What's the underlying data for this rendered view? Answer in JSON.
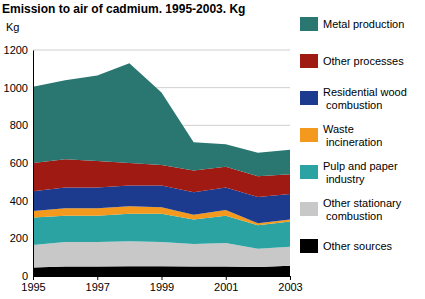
{
  "chart_data": {
    "type": "area",
    "stacked": true,
    "title": "Emission to air of cadmium. 1995-2003. Kg",
    "y_label": "Kg",
    "x": [
      1995,
      1996,
      1997,
      1998,
      1999,
      2000,
      2001,
      2002,
      2003
    ],
    "xlim": [
      1995,
      2003
    ],
    "xticks": [
      1995,
      1997,
      1999,
      2001,
      2003
    ],
    "ylim": [
      0,
      1200
    ],
    "yticks": [
      0,
      200,
      400,
      600,
      800,
      1000,
      1200
    ],
    "grid": true,
    "legend": "right",
    "series": [
      {
        "name": "Other sources",
        "color": "#000000",
        "values": [
          45,
          50,
          50,
          52,
          52,
          50,
          50,
          48,
          55
        ]
      },
      {
        "name": "Other stationary combustion",
        "color": "#c8c8c8",
        "values": [
          120,
          130,
          130,
          133,
          128,
          120,
          125,
          97,
          100
        ]
      },
      {
        "name": "Pulp and paper industry",
        "color": "#2ba3a3",
        "values": [
          145,
          140,
          140,
          145,
          150,
          130,
          145,
          125,
          135
        ]
      },
      {
        "name": "Waste incineration",
        "color": "#f39a1e",
        "values": [
          35,
          40,
          40,
          40,
          35,
          25,
          30,
          10,
          10
        ]
      },
      {
        "name": "Residential wood combustion",
        "color": "#1c3a8e",
        "values": [
          105,
          110,
          110,
          110,
          115,
          120,
          120,
          140,
          135
        ]
      },
      {
        "name": "Other processes",
        "color": "#a01a14",
        "values": [
          150,
          150,
          140,
          120,
          110,
          115,
          110,
          110,
          105
        ]
      },
      {
        "name": "Metal production",
        "color": "#2a7670",
        "values": [
          405,
          420,
          455,
          530,
          385,
          150,
          120,
          125,
          130
        ]
      }
    ]
  }
}
